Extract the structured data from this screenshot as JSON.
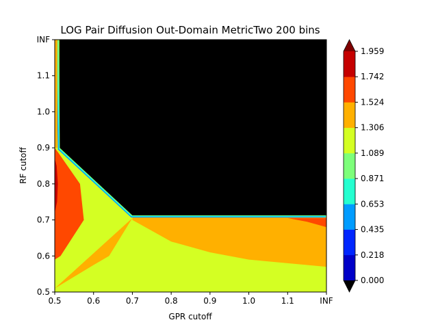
{
  "chart_data": {
    "type": "contour",
    "title": "LOG Pair Diffusion Out-Domain MetricTwo 200 bins",
    "xlabel": "GPR cutoff",
    "ylabel": "RF cutoff",
    "x_tick_labels": [
      "0.5",
      "0.6",
      "0.7",
      "0.8",
      "0.9",
      "1.0",
      "1.1",
      "INF"
    ],
    "y_tick_labels": [
      "0.5",
      "0.6",
      "0.7",
      "0.8",
      "0.9",
      "1.0",
      "1.1",
      "INF"
    ],
    "xlim": [
      0.5,
      1.2
    ],
    "ylim": [
      0.5,
      1.2
    ],
    "grid": false,
    "masked_region_color": "#000000",
    "colorbar": {
      "position": "right",
      "extend": "both",
      "levels": [
        0.0,
        0.218,
        0.435,
        0.653,
        0.871,
        1.089,
        1.306,
        1.524,
        1.742,
        1.959
      ],
      "tick_labels": [
        "0.000",
        "0.218",
        "0.435",
        "0.653",
        "0.871",
        "1.089",
        "1.306",
        "1.524",
        "1.742",
        "1.959"
      ],
      "band_colors": [
        "#0000c8",
        "#0026ff",
        "#009cff",
        "#25ffd0",
        "#7dff7a",
        "#d4ff23",
        "#ffb000",
        "#ff4800",
        "#c50000"
      ],
      "under_color": "#000000",
      "over_color": "#7f0000"
    },
    "regions": [
      {
        "level_band": "1.089-1.306",
        "color": "#d4ff23",
        "polygon": [
          [
            0.5,
            0.5
          ],
          [
            0.7,
            0.5
          ],
          [
            1.2,
            0.5
          ],
          [
            1.2,
            0.57
          ],
          [
            1.0,
            0.59
          ],
          [
            0.9,
            0.61
          ],
          [
            0.8,
            0.64
          ],
          [
            0.7,
            0.7
          ],
          [
            0.7,
            0.705
          ],
          [
            0.64,
            0.6
          ],
          [
            0.6,
            0.575
          ],
          [
            0.5,
            0.51
          ]
        ]
      },
      {
        "level_band": "1.306-1.524",
        "color": "#ffb000",
        "polygon": [
          [
            0.5,
            0.51
          ],
          [
            0.6,
            0.575
          ],
          [
            0.64,
            0.6
          ],
          [
            0.7,
            0.705
          ],
          [
            0.8,
            0.81
          ],
          [
            0.9,
            0.9
          ],
          [
            1.2,
            0.9
          ],
          [
            1.2,
            0.57
          ],
          [
            1.0,
            0.59
          ],
          [
            0.9,
            0.61
          ],
          [
            0.8,
            0.64
          ],
          [
            0.7,
            0.7
          ],
          [
            0.7,
            0.705
          ]
        ]
      },
      {
        "level_band": "1.524-1.742",
        "color": "#ff4800",
        "polygon": [
          [
            0.5,
            0.59
          ],
          [
            0.515,
            0.6
          ],
          [
            0.575,
            0.7
          ],
          [
            0.565,
            0.8
          ],
          [
            0.51,
            0.885
          ],
          [
            0.5,
            0.9
          ]
        ]
      },
      {
        "level_band": "1.524-1.742",
        "color": "#ff4800",
        "polygon": [
          [
            1.1,
            0.705
          ],
          [
            1.2,
            0.705
          ],
          [
            1.2,
            0.68
          ],
          [
            1.15,
            0.695
          ]
        ]
      },
      {
        "level_band": "1.742-1.959",
        "color": "#c50000",
        "polygon": [
          [
            0.5,
            0.72
          ],
          [
            0.506,
            0.75
          ],
          [
            0.508,
            0.8
          ],
          [
            0.505,
            0.85
          ],
          [
            0.5,
            0.87
          ]
        ]
      },
      {
        "level_band": "masked",
        "color": "#000000",
        "polygon": [
          [
            0.512,
            1.2
          ],
          [
            1.2,
            1.2
          ],
          [
            1.2,
            0.712
          ],
          [
            0.7,
            0.712
          ],
          [
            0.512,
            0.9
          ]
        ]
      }
    ]
  }
}
